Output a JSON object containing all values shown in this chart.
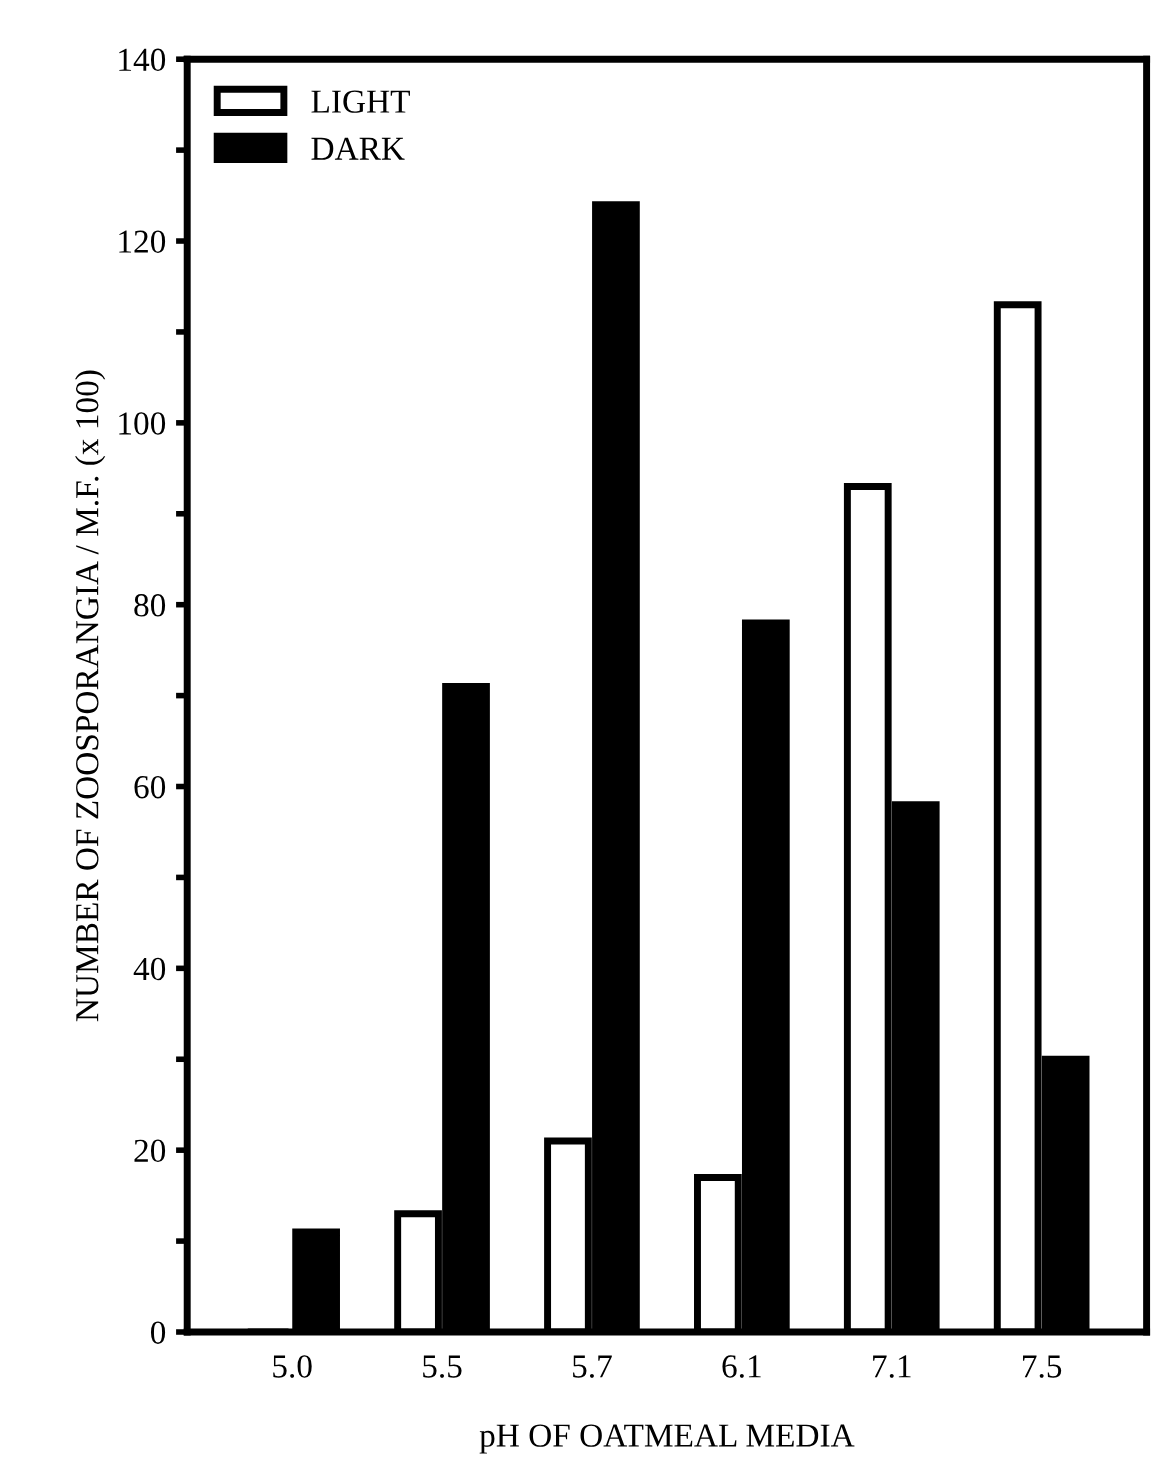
{
  "chart_data": {
    "type": "bar",
    "xlabel": "pH OF OATMEAL MEDIA",
    "ylabel": "NUMBER OF ZOOSPORANGIA / M.F. (x 100)",
    "categories": [
      "5.0",
      "5.5",
      "5.7",
      "6.1",
      "7.1",
      "7.5"
    ],
    "series": [
      {
        "name": "LIGHT",
        "color": "#ffffff",
        "values": [
          0,
          13,
          21,
          17,
          93,
          113
        ]
      },
      {
        "name": "DARK",
        "color": "#000000",
        "values": [
          11,
          71,
          124,
          78,
          58,
          30
        ]
      }
    ],
    "ylim": [
      0,
      140
    ],
    "yticks": [
      0,
      {
        "value": 10,
        "label": null
      },
      20,
      {
        "value": 30,
        "label": null
      },
      40,
      {
        "value": 50,
        "label": null
      },
      60,
      {
        "value": 70,
        "label": null
      },
      80,
      {
        "value": 90,
        "label": null
      },
      100,
      {
        "value": 110,
        "label": null
      },
      120,
      {
        "value": 130,
        "label": null
      },
      140
    ],
    "grid": false,
    "legend": "top left"
  }
}
